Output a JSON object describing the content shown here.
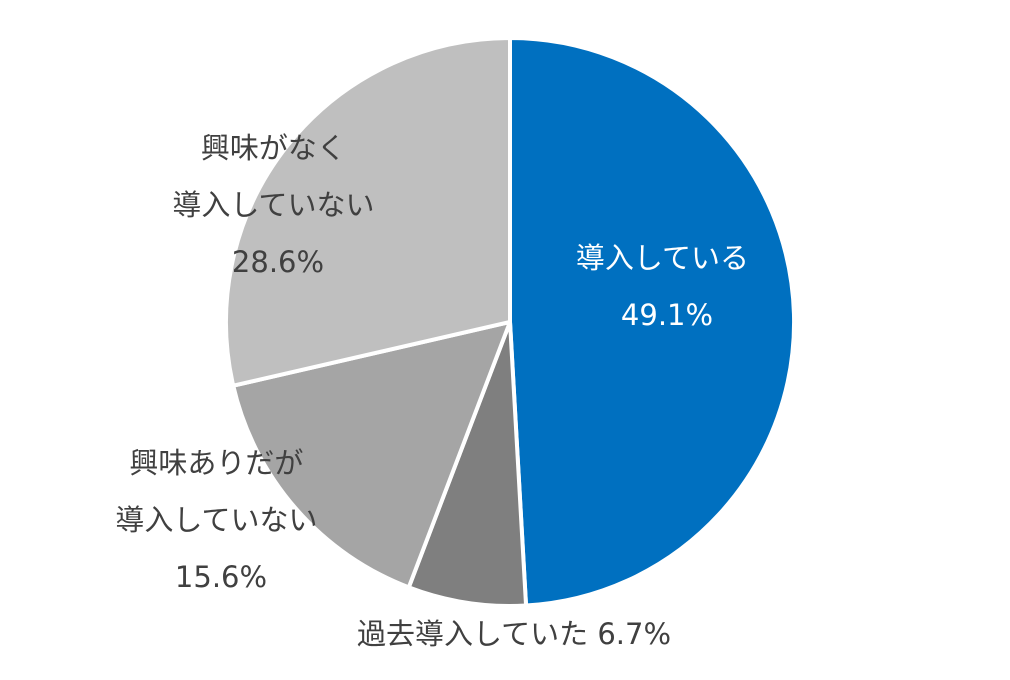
{
  "chart_data": {
    "type": "pie",
    "title": "",
    "start_angle_deg": 0,
    "direction": "clockwise",
    "slices": [
      {
        "label_lines": [
          "導入している"
        ],
        "value": 49.1,
        "value_label": "49.1%",
        "color": "#0070C0"
      },
      {
        "label_lines": [
          "過去導入していた"
        ],
        "value": 6.7,
        "value_label": "6.7%",
        "color": "#7F7F7F"
      },
      {
        "label_lines": [
          "興味ありだが",
          "導入していない"
        ],
        "value": 15.6,
        "value_label": "15.6%",
        "color": "#A5A5A5"
      },
      {
        "label_lines": [
          "興味がなく",
          "導入していない"
        ],
        "value": 28.6,
        "value_label": "28.6%",
        "color": "#BFBFBF"
      }
    ],
    "slice_border_color": "#FFFFFF"
  }
}
